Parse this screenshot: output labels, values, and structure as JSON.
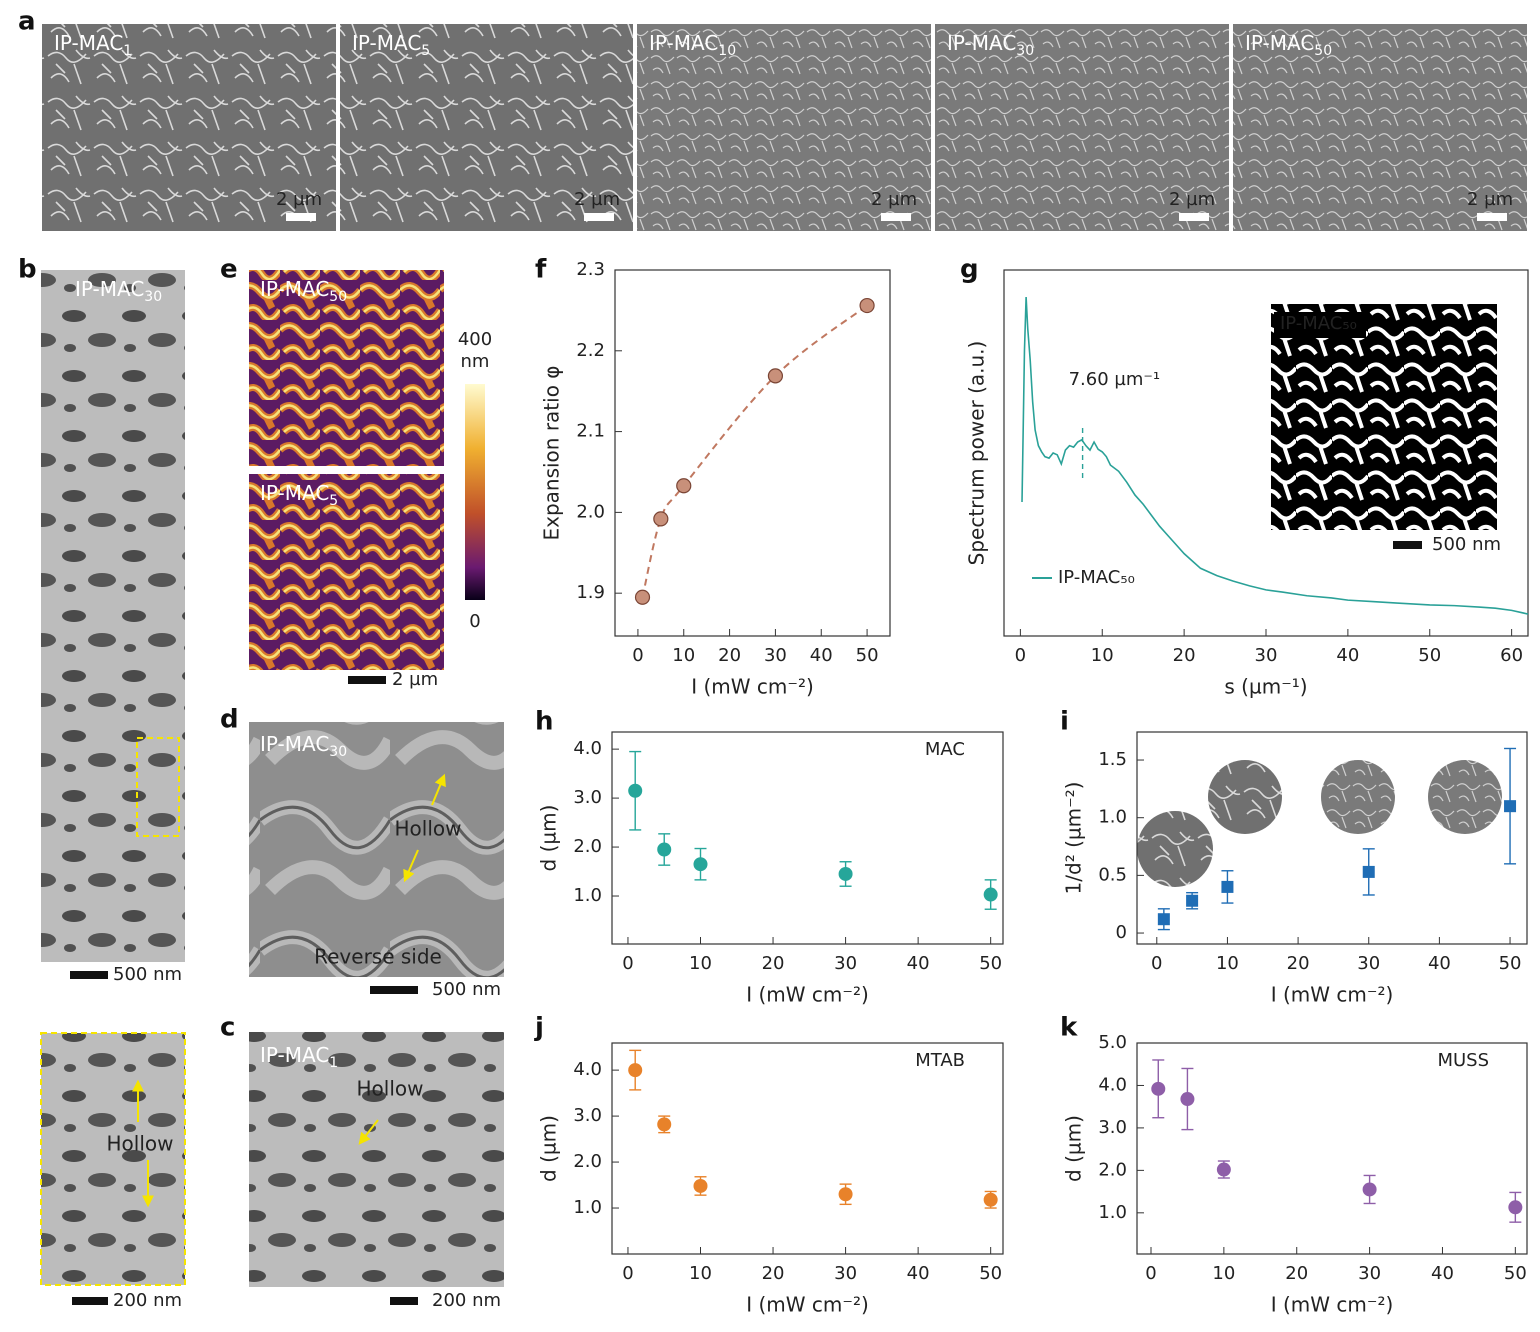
{
  "panel_labels": [
    "a",
    "b",
    "c",
    "d",
    "e",
    "f",
    "g",
    "h",
    "i",
    "j",
    "k"
  ],
  "panel_a": {
    "images": [
      {
        "label": "IP-MAC",
        "subscript": "1",
        "scale_bar": "2 µm"
      },
      {
        "label": "IP-MAC",
        "subscript": "5",
        "scale_bar": "2 µm"
      },
      {
        "label": "IP-MAC",
        "subscript": "10",
        "scale_bar": "2 µm"
      },
      {
        "label": "IP-MAC",
        "subscript": "30",
        "scale_bar": "2 µm"
      },
      {
        "label": "IP-MAC",
        "subscript": "50",
        "scale_bar": "2 µm"
      }
    ]
  },
  "panel_b": {
    "label": "IP-MAC",
    "subscript": "30",
    "scale_bar": "500 nm",
    "inset": {
      "annotation": "Hollow",
      "scale_bar": "200 nm"
    }
  },
  "panel_c": {
    "label": "IP-MAC",
    "subscript": "1",
    "annotation": "Hollow",
    "scale_bar": "200 nm"
  },
  "panel_d": {
    "label": "IP-MAC",
    "subscript": "30",
    "annotation": "Hollow",
    "caption": "Reverse side",
    "scale_bar": "500 nm"
  },
  "panel_e": {
    "images": [
      {
        "label": "IP-MAC",
        "subscript": "50"
      },
      {
        "label": "IP-MAC",
        "subscript": "5"
      }
    ],
    "colorbar": {
      "max": 400,
      "unit": "nm",
      "min": 0
    },
    "scale_bar": "2 µm"
  },
  "panel_g_inset": {
    "label": "IP-MAC₅₀",
    "scale_bar": "500 nm"
  },
  "chart_data": [
    {
      "type": "scatter",
      "x": [
        1,
        5,
        10,
        30,
        50
      ],
      "values": [
        1.895,
        1.992,
        2.033,
        2.169,
        2.256
      ],
      "color": "#c8907a",
      "edge_color": "#7a4535",
      "marker": "circle",
      "fit": "dashed",
      "fit_color": "#c07860",
      "xlim": [
        -5,
        55
      ],
      "ylim": [
        1.847,
        2.3
      ],
      "xticks": [
        0,
        10,
        20,
        30,
        40,
        50
      ],
      "yticks": [
        1.9,
        {
          "value": 2,
          "label": "2.0"
        },
        2.1,
        2.2,
        2.3
      ],
      "x_label": "I (mW cm⁻²)",
      "y_label": "Expansion ratio φ"
    },
    {
      "type": "line",
      "x": [
        0.2,
        0.5,
        0.7,
        0.9,
        1.2,
        1.5,
        1.8,
        2.2,
        2.6,
        3,
        3.5,
        4,
        4.5,
        5,
        5.5,
        6,
        6.5,
        7,
        7.5,
        8,
        8.5,
        9,
        9.5,
        10,
        10.5,
        11,
        12,
        13,
        14,
        15,
        16,
        17,
        18,
        19,
        20,
        21,
        22,
        24,
        26,
        28,
        30,
        32,
        35,
        38,
        40,
        43,
        46,
        50,
        53,
        56,
        58,
        60,
        62
      ],
      "series": [
        {
          "name": "IP-MAC₅₀",
          "color": "#2aa198",
          "values": [
            0.366,
            0.78,
            0.926,
            0.84,
            0.754,
            0.64,
            0.563,
            0.52,
            0.503,
            0.49,
            0.486,
            0.5,
            0.495,
            0.47,
            0.508,
            0.52,
            0.516,
            0.53,
            0.536,
            0.52,
            0.508,
            0.53,
            0.51,
            0.503,
            0.49,
            0.467,
            0.45,
            0.42,
            0.385,
            0.36,
            0.33,
            0.3,
            0.275,
            0.25,
            0.225,
            0.205,
            0.185,
            0.165,
            0.15,
            0.137,
            0.126,
            0.12,
            0.11,
            0.104,
            0.098,
            0.094,
            0.09,
            0.085,
            0.083,
            0.079,
            0.076,
            0.07,
            0.06
          ]
        }
      ],
      "xlim": [
        -2,
        62
      ],
      "ylim": [
        0,
        1
      ],
      "xticks": [
        0,
        10,
        20,
        30,
        40,
        50,
        60
      ],
      "x_label": "s (µm⁻¹)",
      "y_label": "Spectrum power (a.u.)",
      "legend": "lower left",
      "peak": {
        "x": 7.6,
        "label": "7.60 µm⁻¹"
      }
    },
    {
      "type": "scatter",
      "x": [
        1,
        5,
        10,
        30,
        50
      ],
      "values": [
        3.15,
        1.95,
        1.65,
        1.45,
        1.03
      ],
      "errors": [
        0.8,
        0.32,
        0.32,
        0.25,
        0.3
      ],
      "color": "#26a69a",
      "marker": "circle",
      "annotation": "MAC",
      "xlim": [
        -2.2,
        51.7
      ],
      "ylim": [
        0.02,
        4.35
      ],
      "xticks": [
        0,
        10,
        20,
        30,
        40,
        50
      ],
      "yticks": [
        {
          "value": 1,
          "label": "1.0"
        },
        {
          "value": 2,
          "label": "2.0"
        },
        {
          "value": 3,
          "label": "3.0"
        },
        {
          "value": 4,
          "label": "4.0"
        }
      ],
      "x_label": "I (mW cm⁻²)",
      "y_label": "d (µm)"
    },
    {
      "type": "scatter",
      "x": [
        1,
        5,
        10,
        30,
        50
      ],
      "values": [
        0.12,
        0.28,
        0.4,
        0.53,
        1.1
      ],
      "errors": [
        0.09,
        0.07,
        0.14,
        0.2,
        0.5
      ],
      "color": "#1f6db5",
      "marker": "square",
      "xlim": [
        -2.8,
        52.4
      ],
      "ylim": [
        -0.095,
        1.743
      ],
      "xticks": [
        0,
        10,
        20,
        30,
        40,
        50
      ],
      "yticks": [
        0,
        0.5,
        {
          "value": 1,
          "label": "1.0"
        },
        1.5
      ],
      "x_label": "I (mW cm⁻²)",
      "y_label": "1/d² (µm⁻²)"
    },
    {
      "type": "scatter",
      "x": [
        1,
        5,
        10,
        30,
        50
      ],
      "values": [
        4.0,
        2.82,
        1.48,
        1.3,
        1.18
      ],
      "errors": [
        0.43,
        0.18,
        0.2,
        0.22,
        0.18
      ],
      "color": "#e8822a",
      "marker": "circle",
      "annotation": "MTAB",
      "xlim": [
        -2.2,
        51.7
      ],
      "ylim": [
        0,
        4.59
      ],
      "xticks": [
        0,
        10,
        20,
        30,
        40,
        50
      ],
      "yticks": [
        {
          "value": 1,
          "label": "1.0"
        },
        {
          "value": 2,
          "label": "2.0"
        },
        {
          "value": 3,
          "label": "3.0"
        },
        {
          "value": 4,
          "label": "4.0"
        }
      ],
      "x_label": "I (mW cm⁻²)",
      "y_label": "d (µm)"
    },
    {
      "type": "scatter",
      "x": [
        1,
        5,
        10,
        30,
        50
      ],
      "values": [
        3.92,
        3.68,
        2.02,
        1.55,
        1.13
      ],
      "errors": [
        0.68,
        0.72,
        0.2,
        0.33,
        0.35
      ],
      "color": "#8e5ea8",
      "marker": "circle",
      "annotation": "MUSS",
      "xlim": [
        -1.92,
        51.6
      ],
      "ylim": [
        0.03,
        5.0
      ],
      "xticks": [
        0,
        10,
        20,
        30,
        40,
        50
      ],
      "yticks": [
        {
          "value": 1,
          "label": "1.0"
        },
        {
          "value": 2,
          "label": "2.0"
        },
        {
          "value": 3,
          "label": "3.0"
        },
        {
          "value": 4,
          "label": "4.0"
        },
        {
          "value": 5,
          "label": "5.0"
        }
      ],
      "x_label": "I (mW cm⁻²)",
      "y_label": "d (µm)"
    }
  ]
}
